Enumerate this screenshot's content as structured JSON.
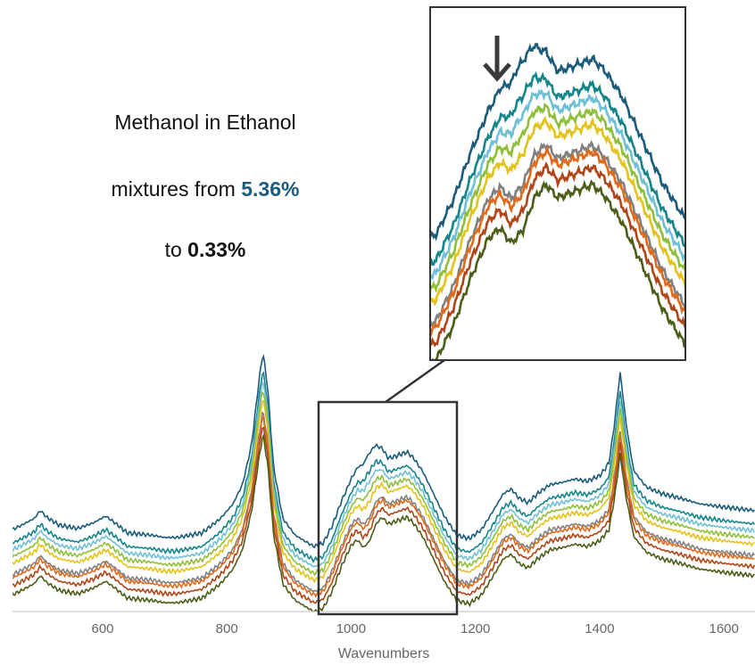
{
  "caption": {
    "line1": "Methanol in Ethanol",
    "line2_prefix": "mixtures from ",
    "line2_value": "5.36%",
    "line3_prefix": "to ",
    "line3_value": "0.33%",
    "highlight_color": "#1a5a7a"
  },
  "chart_data": {
    "type": "line",
    "title": "",
    "xlabel": "Wavenumbers",
    "ylabel": "",
    "xlim": [
      455,
      1650
    ],
    "x_ticks": [
      600,
      800,
      1000,
      1200,
      1400,
      1600
    ],
    "grid": false,
    "legend": "none",
    "inset_region": [
      950,
      1170
    ],
    "annotation": "arrow marking methanol shoulder near 1030",
    "base_spectrum": {
      "x": [
        455,
        470,
        490,
        500,
        510,
        530,
        560,
        585,
        605,
        620,
        640,
        680,
        700,
        720,
        760,
        790,
        810,
        825,
        840,
        850,
        858,
        866,
        875,
        890,
        910,
        940,
        955,
        970,
        985,
        1000,
        1010,
        1020,
        1030,
        1040,
        1050,
        1060,
        1075,
        1090,
        1100,
        1115,
        1130,
        1150,
        1170,
        1190,
        1210,
        1230,
        1245,
        1258,
        1270,
        1285,
        1300,
        1320,
        1340,
        1360,
        1380,
        1400,
        1415,
        1425,
        1433,
        1442,
        1455,
        1475,
        1500,
        1530,
        1560,
        1600,
        1650
      ],
      "y": [
        0.3,
        0.34,
        0.4,
        0.47,
        0.41,
        0.34,
        0.31,
        0.36,
        0.42,
        0.36,
        0.27,
        0.25,
        0.23,
        0.23,
        0.27,
        0.4,
        0.53,
        0.7,
        1.05,
        1.45,
        1.73,
        1.45,
        0.85,
        0.4,
        0.25,
        0.15,
        0.18,
        0.34,
        0.56,
        0.74,
        0.79,
        0.72,
        0.78,
        0.93,
        0.99,
        0.93,
        0.96,
        0.99,
        0.94,
        0.82,
        0.65,
        0.42,
        0.25,
        0.22,
        0.3,
        0.48,
        0.62,
        0.66,
        0.58,
        0.54,
        0.62,
        0.7,
        0.72,
        0.75,
        0.73,
        0.78,
        0.88,
        1.2,
        1.55,
        1.18,
        0.82,
        0.68,
        0.62,
        0.58,
        0.53,
        0.5,
        0.47
      ]
    },
    "series": [
      {
        "color": "#1a5a7a",
        "offset": 0.58,
        "peak_gain": 0.14,
        "shoulder": 0.2
      },
      {
        "color": "#15858a",
        "offset": 0.46,
        "peak_gain": 0.11,
        "shoulder": 0.16
      },
      {
        "color": "#6fc0d6",
        "offset": 0.4,
        "peak_gain": 0.09,
        "shoulder": 0.13
      },
      {
        "color": "#8fbf3a",
        "offset": 0.34,
        "peak_gain": 0.07,
        "shoulder": 0.1
      },
      {
        "color": "#e3c21a",
        "offset": 0.28,
        "peak_gain": 0.05,
        "shoulder": 0.07
      },
      {
        "color": "#808080",
        "offset": 0.18,
        "peak_gain": 0.03,
        "shoulder": 0.03
      },
      {
        "color": "#e06a1a",
        "offset": 0.15,
        "peak_gain": 0.02,
        "shoulder": 0.02
      },
      {
        "color": "#b0451a",
        "offset": 0.08,
        "peak_gain": 0.01,
        "shoulder": 0.01
      },
      {
        "color": "#4a5e18",
        "offset": 0.0,
        "peak_gain": 0.0,
        "shoulder": 0.0
      }
    ]
  }
}
